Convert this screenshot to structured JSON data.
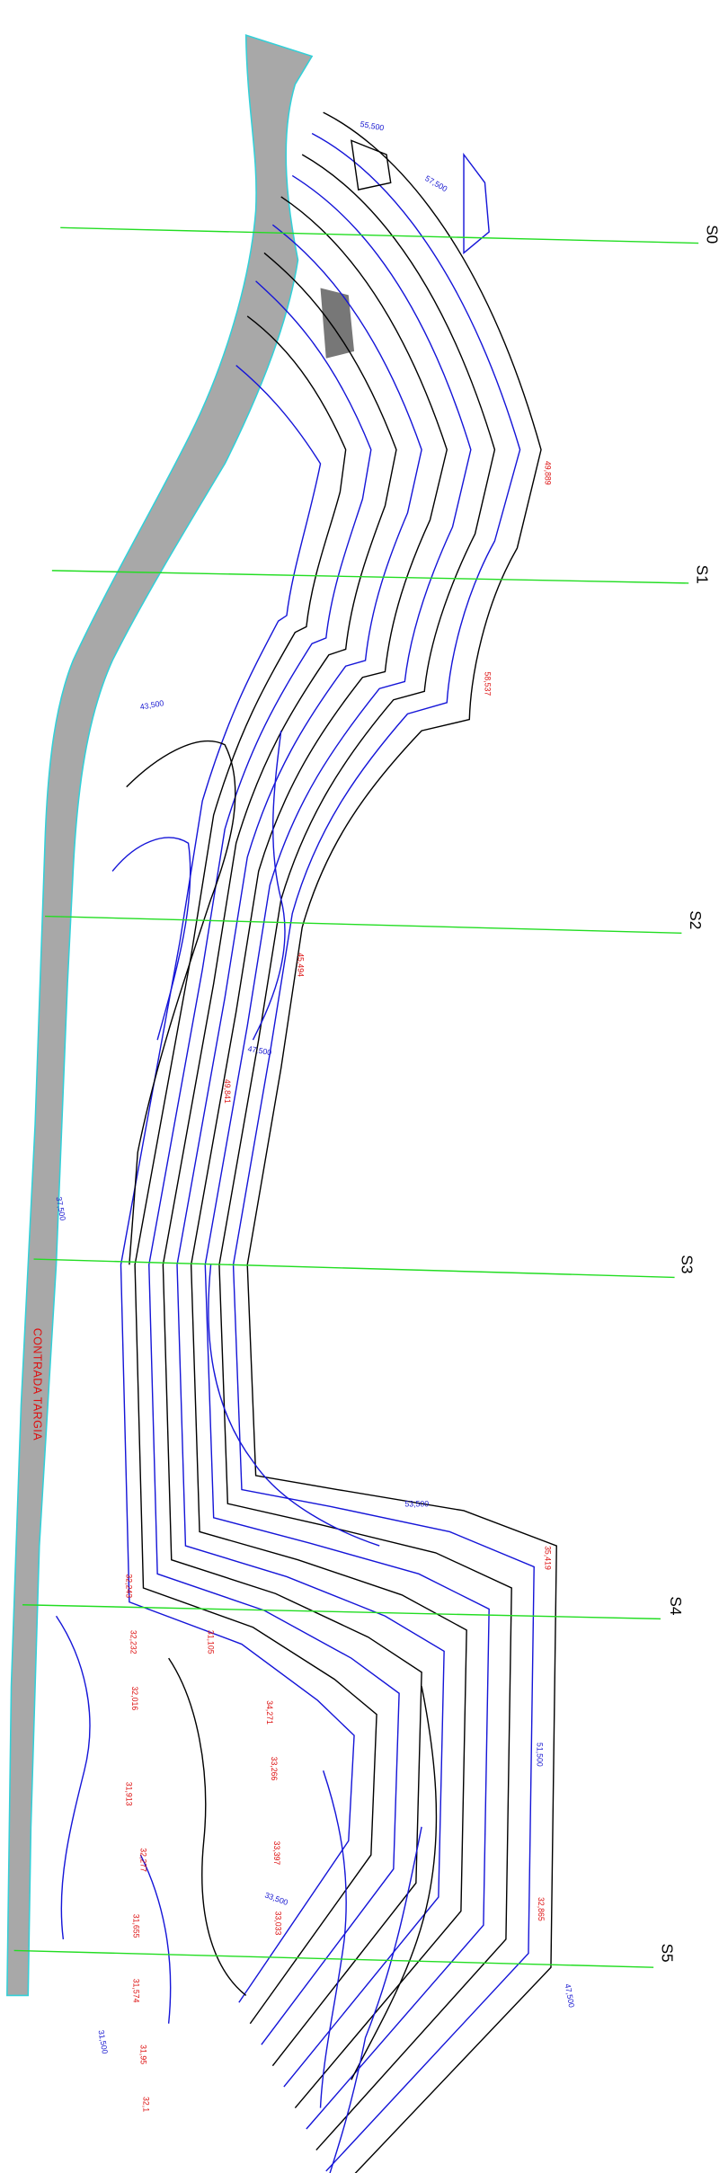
{
  "sections": [
    "S0",
    "S1",
    "S2",
    "S3",
    "S4",
    "S5"
  ],
  "locality": "CONTRADA TARGIA",
  "spot_heights": [
    "49,889",
    "58,537",
    "45,494",
    "49,841",
    "32,243",
    "32,232",
    "32,016",
    "31,913",
    "32,277",
    "33,033",
    "33,397",
    "33,266",
    "34,271",
    "31,655",
    "31,574",
    "31,95",
    "32,1",
    "35,419",
    "32,865",
    "31,105"
  ],
  "contour_labels": [
    "55,500",
    "57,500",
    "53,500",
    "51,500",
    "33,500",
    "43,500",
    "47,500",
    "31,500",
    "47,500",
    "37,500"
  ]
}
